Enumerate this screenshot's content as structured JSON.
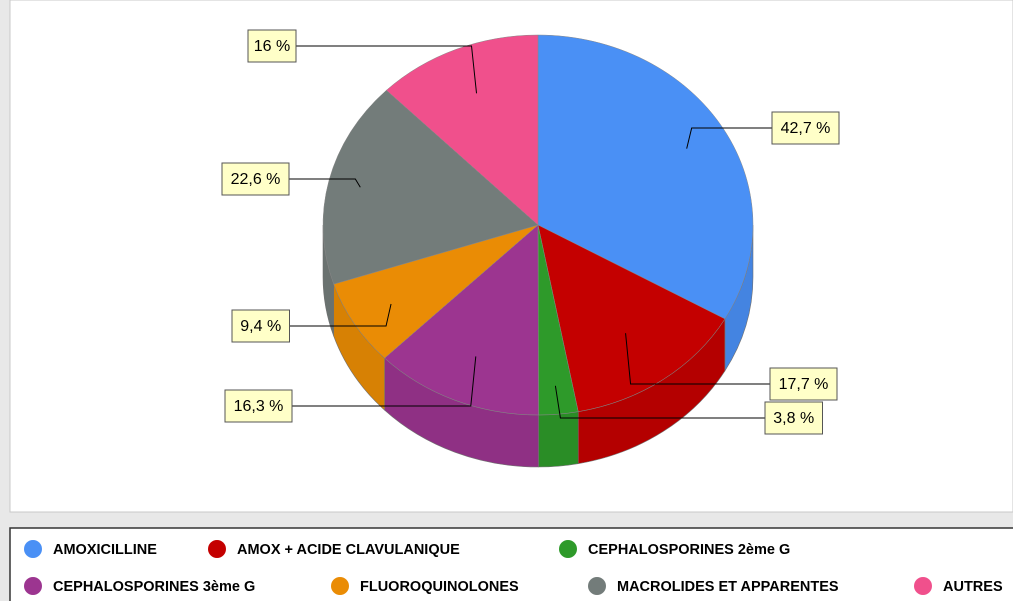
{
  "chart_data": {
    "type": "pie3d",
    "categories": [
      "AMOXICILLINE",
      "AMOX + ACIDE CLAVULANIQUE",
      "CEPHALOSPORINES 2ème G",
      "CEPHALOSPORINES 3ème G",
      "FLUOROQUINOLONES",
      "MACROLIDES ET APPARENTES",
      "AUTRES"
    ],
    "values": [
      42.7,
      17.7,
      3.8,
      16.3,
      9.4,
      22.6,
      16
    ],
    "value_labels": [
      "42,7 %",
      "17,7 %",
      "3,8 %",
      "16,3 %",
      "9,4 %",
      "22,6 %",
      "16 %"
    ],
    "colors": [
      "#4a90f5",
      "#c40000",
      "#2e9a2a",
      "#9c3590",
      "#ea8c05",
      "#737c7a",
      "#f0508c"
    ]
  }
}
